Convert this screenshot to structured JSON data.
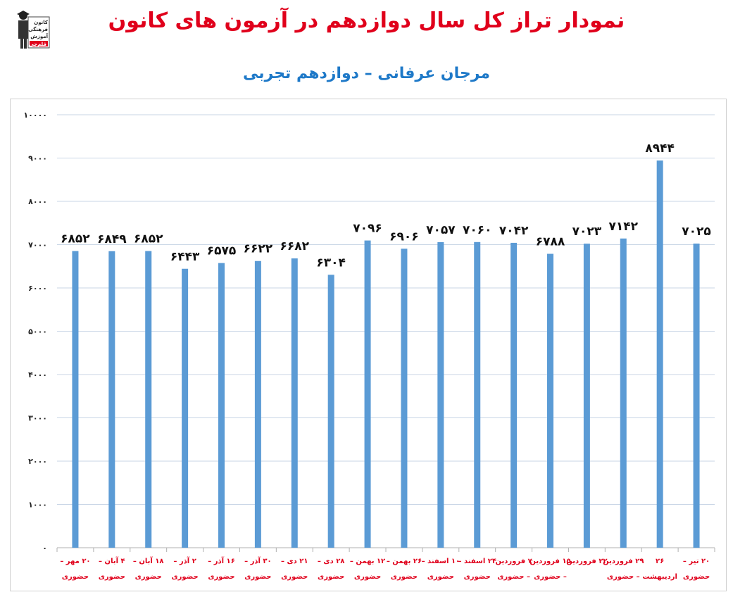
{
  "header": {
    "title": "نمودار تراز کل سال دوازدهم در آزمون های کانون",
    "subtitle": "مرجان عرفانی – دوازدهم تجربی",
    "logo_lines": [
      "کانون",
      "فرهنگی",
      "آموزش",
      "قلم‌چی"
    ]
  },
  "colors": {
    "bar": "#5b9bd5",
    "title": "#e0001b",
    "subtitle": "#1e79c8",
    "grid": "#c9d6e6",
    "xlabel": "#e0001b"
  },
  "chart_data": {
    "type": "bar",
    "title": "نمودار تراز کل سال دوازدهم در آزمون های کانون",
    "subtitle": "مرجان عرفانی – دوازدهم تجربی",
    "categories": [
      [
        "۲۰ مهر –",
        "حضوری"
      ],
      [
        "۴ آبان –",
        "حضوری"
      ],
      [
        "۱۸ آبان –",
        "حضوری"
      ],
      [
        "۲ آذر –",
        "حضوری"
      ],
      [
        "۱۶ آذر –",
        "حضوری"
      ],
      [
        "۳۰ آذر –",
        "حضوری"
      ],
      [
        "۲۱ دی –",
        "حضوری"
      ],
      [
        "۲۸ دی –",
        "حضوری"
      ],
      [
        "۱۲ بهمن –",
        "حضوری"
      ],
      [
        "۲۶ بهمن –",
        "حضوری"
      ],
      [
        "۱۰ اسفند –",
        "حضوری"
      ],
      [
        "۲۴ اسفند –",
        "حضوری"
      ],
      [
        "۷ فروردین",
        "– حضوری"
      ],
      [
        "۱۵ فروردین",
        "– حضوری"
      ],
      [
        "۲۲ فروردین",
        ""
      ],
      [
        "۲۹ فروردین",
        "– حضوری"
      ],
      [
        "۲۶",
        "اردیبهشت"
      ],
      [
        "۲۰ تیر –",
        "حضوری"
      ]
    ],
    "values": [
      6852,
      6849,
      6852,
      6443,
      6575,
      6622,
      6682,
      6304,
      7096,
      6906,
      7057,
      7060,
      7042,
      6788,
      7023,
      7142,
      8944,
      7025
    ],
    "value_labels": [
      "۶۸۵۲",
      "۶۸۴۹",
      "۶۸۵۲",
      "۶۴۴۳",
      "۶۵۷۵",
      "۶۶۲۲",
      "۶۶۸۲",
      "۶۳۰۴",
      "۷۰۹۶",
      "۶۹۰۶",
      "۷۰۵۷",
      "۷۰۶۰",
      "۷۰۴۲",
      "۶۷۸۸",
      "۷۰۲۳",
      "۷۱۴۲",
      "۸۹۴۴",
      "۷۰۲۵"
    ],
    "ylim": [
      0,
      10000
    ],
    "yticks": [
      0,
      1000,
      2000,
      3000,
      4000,
      5000,
      6000,
      7000,
      8000,
      9000,
      10000
    ],
    "ytick_labels": [
      "۰",
      "۱۰۰۰",
      "۲۰۰۰",
      "۳۰۰۰",
      "۴۰۰۰",
      "۵۰۰۰",
      "۶۰۰۰",
      "۷۰۰۰",
      "۸۰۰۰",
      "۹۰۰۰",
      "۱۰۰۰۰"
    ],
    "xlabel": "",
    "ylabel": "",
    "grid": true,
    "legend": "none"
  }
}
